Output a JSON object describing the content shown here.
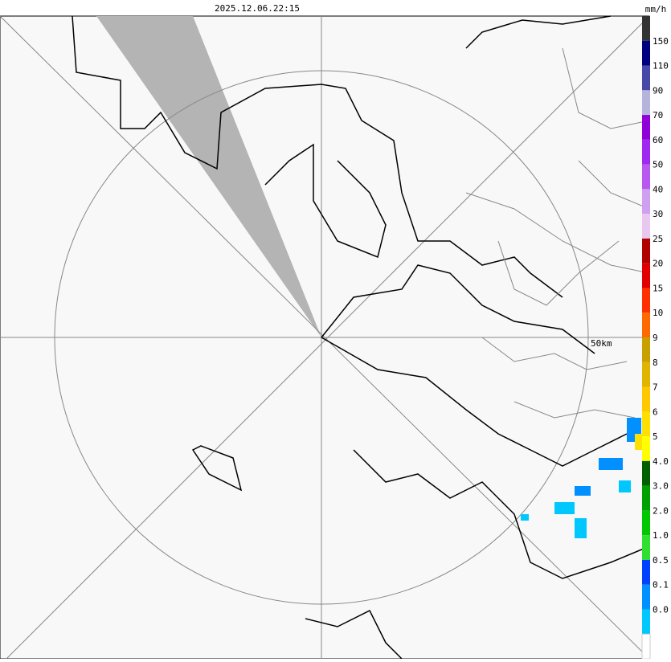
{
  "header": {
    "timestamp": "2025.12.06.22:15",
    "unit": "mm/h"
  },
  "map": {
    "range_label": "50km"
  },
  "legend": {
    "labels": [
      "150",
      "110",
      "90",
      "70",
      "60",
      "50",
      "40",
      "30",
      "25",
      "20",
      "15",
      "10",
      "9",
      "8",
      "7",
      "6",
      "5",
      "4.0",
      "3.0",
      "2.0",
      "1.0",
      "0.5",
      "0.1",
      "0.0"
    ],
    "colors": [
      "#333333",
      "#000080",
      "#4848a8",
      "#b4b4dc",
      "#9000d8",
      "#a028f0",
      "#b858f0",
      "#d0a0f0",
      "#e8c8f0",
      "#b00000",
      "#e00000",
      "#ff3000",
      "#ff6a00",
      "#c8a000",
      "#e0b400",
      "#ffc800",
      "#ffe000",
      "#ffff00",
      "#006000",
      "#00a000",
      "#00c800",
      "#30e030",
      "#0040ff",
      "#0090ff",
      "#00c8ff"
    ]
  }
}
